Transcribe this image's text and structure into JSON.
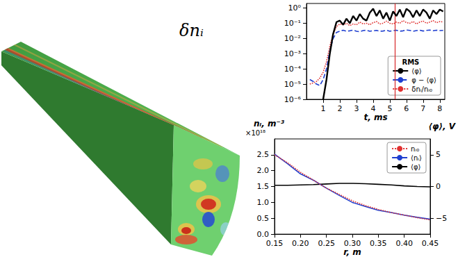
{
  "rendering": {
    "title": "δnᵢ"
  },
  "chart_data": [
    {
      "type": "line",
      "xlabel": "t, ms",
      "legend_title": "RMS",
      "x": [
        0.2,
        0.4,
        0.6,
        0.8,
        1.0,
        1.2,
        1.4,
        1.6,
        1.8,
        2.0,
        2.2,
        2.4,
        2.6,
        2.8,
        3.0,
        3.2,
        3.4,
        3.6,
        3.8,
        4.0,
        4.2,
        4.4,
        4.6,
        4.8,
        5.0,
        5.2,
        5.4,
        5.6,
        5.8,
        6.0,
        6.2,
        6.4,
        6.6,
        6.8,
        7.0,
        7.2,
        7.4,
        7.6,
        7.8,
        8.0,
        8.2
      ],
      "series": [
        {
          "name": "⟨φ⟩",
          "color": "#000000",
          "line_style": "solid",
          "values": [
            null,
            null,
            null,
            null,
            1e-06,
            2e-05,
            0.001,
            0.02,
            0.12,
            0.15,
            0.08,
            0.2,
            0.1,
            0.3,
            0.15,
            0.4,
            0.2,
            0.15,
            0.5,
            0.9,
            0.3,
            0.7,
            0.2,
            0.5,
            0.15,
            0.6,
            0.3,
            0.8,
            0.25,
            0.9,
            0.6,
            0.25,
            0.7,
            0.3,
            0.8,
            0.5,
            0.2,
            0.7,
            0.4,
            0.8,
            0.6
          ]
        },
        {
          "name": "φ − ⟨φ⟩",
          "color": "#1f3fd0",
          "line_style": "dashed",
          "values": [
            2e-05,
            1.5e-05,
            1e-05,
            8e-06,
            2e-05,
            0.0001,
            0.0015,
            0.01,
            0.025,
            0.03,
            0.035,
            0.03,
            0.032,
            0.036,
            0.03,
            0.028,
            0.033,
            0.035,
            0.03,
            0.032,
            0.034,
            0.03,
            0.031,
            0.035,
            0.03,
            0.033,
            0.035,
            0.03,
            0.032,
            0.036,
            0.034,
            0.03,
            0.033,
            0.035,
            0.031,
            0.034,
            0.036,
            0.032,
            0.035,
            0.033,
            0.034
          ]
        },
        {
          "name": "δnᵢ/nᵢ₀",
          "color": "#e03030",
          "line_style": "dotted",
          "values": [
            1e-05,
            1.2e-05,
            1.5e-05,
            2.5e-05,
            6e-05,
            0.0003,
            0.003,
            0.02,
            0.06,
            0.09,
            0.08,
            0.1,
            0.07,
            0.09,
            0.08,
            0.12,
            0.09,
            0.1,
            0.08,
            0.11,
            0.13,
            0.09,
            0.1,
            0.14,
            0.1,
            0.09,
            0.12,
            0.1,
            0.15,
            0.11,
            0.1,
            0.13,
            0.09,
            0.12,
            0.14,
            0.1,
            0.12,
            0.15,
            0.11,
            0.13,
            0.12
          ]
        }
      ],
      "vlines": [
        {
          "x": 5.3,
          "color": "#d62728"
        }
      ],
      "xlim": [
        0,
        8.3
      ],
      "xticks": [
        1,
        2,
        3,
        4,
        5,
        6,
        7,
        8
      ],
      "ylim": [
        1e-06,
        2
      ],
      "yticks": [
        {
          "value": 1e-06,
          "label": "10⁻⁶"
        },
        {
          "value": 1e-05,
          "label": "10⁻⁵"
        },
        {
          "value": 0.0001,
          "label": "10⁻⁴"
        },
        {
          "value": 0.001,
          "label": "10⁻³"
        },
        {
          "value": 0.01,
          "label": "10⁻²"
        },
        {
          "value": 0.1,
          "label": "10⁻¹"
        },
        {
          "value": 1,
          "label": "10⁰"
        }
      ],
      "log": "y",
      "grid": false,
      "legend": "lower right"
    },
    {
      "type": "line",
      "xlabel": "r, m",
      "ylabel": "nᵢ, m⁻³",
      "y_offset_label": "×10¹⁸",
      "y2label": "⟨φ⟩, V",
      "x": [
        0.15,
        0.175,
        0.2,
        0.225,
        0.25,
        0.275,
        0.3,
        0.325,
        0.35,
        0.375,
        0.4,
        0.425,
        0.45
      ],
      "series": [
        {
          "name": "nᵢ₀",
          "color": "#e03030",
          "line_style": "dotted",
          "values": [
            2.5,
            2.25,
            1.95,
            1.7,
            1.45,
            1.25,
            1.05,
            0.9,
            0.78,
            0.68,
            0.6,
            0.52,
            0.45
          ]
        },
        {
          "name": "⟨nᵢ⟩",
          "color": "#1f3fd0",
          "line_style": "solid",
          "values": [
            2.52,
            2.22,
            1.9,
            1.7,
            1.45,
            1.22,
            1.0,
            0.87,
            0.75,
            0.68,
            0.6,
            0.53,
            0.47
          ]
        },
        {
          "name": "⟨φ⟩",
          "color": "#000000",
          "line_style": "solid",
          "axis": "y2",
          "values": [
            0.2,
            0.2,
            0.25,
            0.3,
            0.4,
            0.5,
            0.5,
            0.45,
            0.35,
            0.25,
            0.1,
            0.0,
            -0.05
          ]
        }
      ],
      "xlim": [
        0.15,
        0.45
      ],
      "xticks": [
        0.15,
        {
          "value": 0.2,
          "label": "0.20"
        },
        0.25,
        {
          "value": 0.3,
          "label": "0.30"
        },
        0.35,
        {
          "value": 0.4,
          "label": "0.40"
        },
        0.45
      ],
      "ylim": [
        0,
        3
      ],
      "yticks": [
        {
          "value": 0,
          "label": "0.0"
        },
        0.5,
        {
          "value": 1,
          "label": "1.0"
        },
        1.5,
        {
          "value": 2,
          "label": "2.0"
        },
        2.5
      ],
      "y2lim": [
        -7.5,
        7.5
      ],
      "y2ticks": [
        {
          "value": -5,
          "label": "−5"
        },
        0,
        5
      ],
      "grid": false,
      "legend": "upper right"
    }
  ]
}
